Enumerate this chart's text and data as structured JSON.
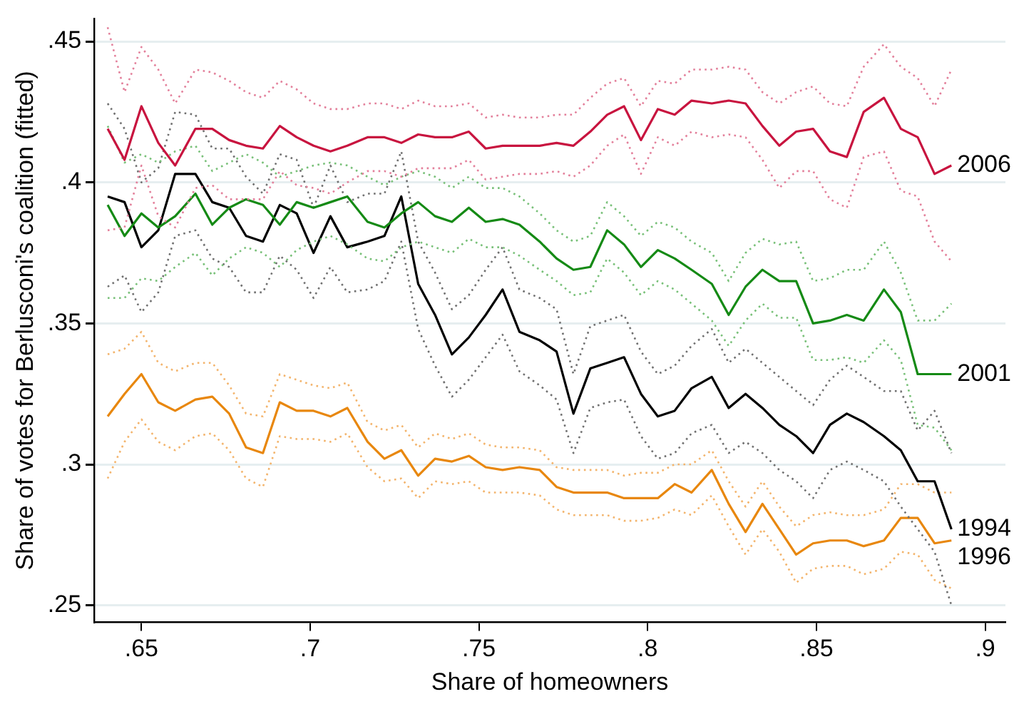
{
  "chart_data": {
    "type": "line",
    "xlabel": "Share of homeowners",
    "ylabel": "Share of votes for Berlusconi's coalition (fitted)",
    "x": [
      0.64,
      0.645,
      0.65,
      0.655,
      0.66,
      0.666,
      0.671,
      0.676,
      0.681,
      0.686,
      0.691,
      0.696,
      0.701,
      0.706,
      0.711,
      0.717,
      0.722,
      0.727,
      0.732,
      0.737,
      0.742,
      0.747,
      0.752,
      0.757,
      0.762,
      0.768,
      0.773,
      0.778,
      0.783,
      0.788,
      0.793,
      0.798,
      0.803,
      0.808,
      0.813,
      0.819,
      0.824,
      0.829,
      0.834,
      0.839,
      0.844,
      0.849,
      0.854,
      0.859,
      0.864,
      0.87,
      0.875,
      0.88,
      0.885,
      0.89
    ],
    "xlim": [
      0.636,
      0.906
    ],
    "xticks": [
      {
        "value": 0.65,
        "label": ".65"
      },
      {
        "value": 0.7,
        "label": ".7"
      },
      {
        "value": 0.75,
        "label": ".75"
      },
      {
        "value": 0.8,
        "label": ".8"
      },
      {
        "value": 0.85,
        "label": ".85"
      },
      {
        "value": 0.9,
        "label": ".9"
      }
    ],
    "ylim": [
      0.244,
      0.458
    ],
    "yticks": [
      {
        "value": 0.25,
        "label": ".25"
      },
      {
        "value": 0.3,
        "label": ".3"
      },
      {
        "value": 0.35,
        "label": ".35"
      },
      {
        "value": 0.4,
        "label": ".4"
      },
      {
        "value": 0.45,
        "label": ".45"
      }
    ],
    "grid": "y",
    "legend": false,
    "marker": "none",
    "line_style": "solid",
    "series": [
      {
        "name": "2006",
        "color": "#c8143f",
        "values": [
          0.419,
          0.408,
          0.427,
          0.414,
          0.406,
          0.419,
          0.419,
          0.415,
          0.413,
          0.412,
          0.42,
          0.416,
          0.413,
          0.411,
          0.413,
          0.416,
          0.416,
          0.414,
          0.417,
          0.416,
          0.416,
          0.418,
          0.412,
          0.413,
          0.413,
          0.413,
          0.414,
          0.413,
          0.418,
          0.424,
          0.427,
          0.415,
          0.426,
          0.424,
          0.429,
          0.428,
          0.429,
          0.428,
          0.42,
          0.413,
          0.418,
          0.419,
          0.411,
          0.409,
          0.425,
          0.43,
          0.419,
          0.416,
          0.403,
          0.406
        ]
      },
      {
        "color": "#e3809b",
        "line_style": "dotted",
        "values": [
          0.455,
          0.432,
          0.448,
          0.44,
          0.428,
          0.44,
          0.439,
          0.436,
          0.432,
          0.43,
          0.436,
          0.433,
          0.428,
          0.426,
          0.426,
          0.428,
          0.428,
          0.426,
          0.429,
          0.427,
          0.427,
          0.428,
          0.423,
          0.424,
          0.423,
          0.423,
          0.424,
          0.424,
          0.43,
          0.435,
          0.437,
          0.427,
          0.436,
          0.435,
          0.44,
          0.44,
          0.441,
          0.44,
          0.432,
          0.428,
          0.432,
          0.434,
          0.428,
          0.427,
          0.441,
          0.449,
          0.441,
          0.437,
          0.427,
          0.44
        ]
      },
      {
        "color": "#e3809b",
        "line_style": "dotted",
        "values": [
          0.383,
          0.384,
          0.406,
          0.388,
          0.384,
          0.398,
          0.399,
          0.394,
          0.394,
          0.394,
          0.404,
          0.399,
          0.398,
          0.396,
          0.4,
          0.404,
          0.404,
          0.402,
          0.405,
          0.405,
          0.405,
          0.408,
          0.401,
          0.402,
          0.403,
          0.403,
          0.404,
          0.402,
          0.406,
          0.413,
          0.417,
          0.403,
          0.416,
          0.413,
          0.418,
          0.416,
          0.417,
          0.416,
          0.408,
          0.398,
          0.404,
          0.404,
          0.394,
          0.391,
          0.409,
          0.411,
          0.397,
          0.395,
          0.379,
          0.372
        ]
      },
      {
        "name": "2001",
        "color": "#158a15",
        "values": [
          0.392,
          0.381,
          0.389,
          0.384,
          0.388,
          0.396,
          0.385,
          0.391,
          0.394,
          0.392,
          0.385,
          0.393,
          0.391,
          0.393,
          0.395,
          0.386,
          0.384,
          0.389,
          0.393,
          0.388,
          0.386,
          0.391,
          0.386,
          0.387,
          0.385,
          0.379,
          0.373,
          0.369,
          0.37,
          0.383,
          0.378,
          0.37,
          0.376,
          0.373,
          0.369,
          0.364,
          0.353,
          0.363,
          0.369,
          0.365,
          0.365,
          0.35,
          0.351,
          0.353,
          0.351,
          0.362,
          0.354,
          0.332,
          0.332,
          0.332
        ]
      },
      {
        "color": "#78c078",
        "line_style": "dotted",
        "values": [
          0.42,
          0.407,
          0.41,
          0.407,
          0.411,
          0.413,
          0.404,
          0.407,
          0.41,
          0.407,
          0.402,
          0.404,
          0.406,
          0.407,
          0.406,
          0.402,
          0.399,
          0.402,
          0.404,
          0.402,
          0.398,
          0.402,
          0.398,
          0.398,
          0.395,
          0.389,
          0.383,
          0.379,
          0.381,
          0.393,
          0.388,
          0.381,
          0.386,
          0.384,
          0.379,
          0.375,
          0.365,
          0.375,
          0.38,
          0.378,
          0.379,
          0.365,
          0.366,
          0.369,
          0.369,
          0.379,
          0.368,
          0.351,
          0.351,
          0.357
        ]
      },
      {
        "color": "#78c078",
        "line_style": "dotted",
        "values": [
          0.359,
          0.359,
          0.366,
          0.365,
          0.37,
          0.375,
          0.367,
          0.373,
          0.377,
          0.375,
          0.37,
          0.376,
          0.379,
          0.381,
          0.378,
          0.373,
          0.372,
          0.377,
          0.379,
          0.377,
          0.375,
          0.38,
          0.377,
          0.377,
          0.374,
          0.369,
          0.365,
          0.36,
          0.361,
          0.373,
          0.368,
          0.36,
          0.365,
          0.362,
          0.357,
          0.351,
          0.342,
          0.351,
          0.357,
          0.352,
          0.352,
          0.337,
          0.337,
          0.338,
          0.336,
          0.344,
          0.337,
          0.314,
          0.313,
          0.305
        ]
      },
      {
        "name": "1994",
        "color": "#000000",
        "values": [
          0.395,
          0.393,
          0.377,
          0.383,
          0.403,
          0.403,
          0.393,
          0.391,
          0.381,
          0.379,
          0.392,
          0.389,
          0.375,
          0.388,
          0.377,
          0.379,
          0.381,
          0.395,
          0.364,
          0.353,
          0.339,
          0.345,
          0.353,
          0.362,
          0.347,
          0.344,
          0.34,
          0.318,
          0.334,
          0.336,
          0.338,
          0.325,
          0.317,
          0.319,
          0.327,
          0.331,
          0.32,
          0.325,
          0.32,
          0.314,
          0.31,
          0.304,
          0.314,
          0.318,
          0.315,
          0.31,
          0.305,
          0.294,
          0.294,
          0.277
        ]
      },
      {
        "color": "#707070",
        "line_style": "dotted",
        "values": [
          0.428,
          0.419,
          0.4,
          0.405,
          0.425,
          0.424,
          0.412,
          0.412,
          0.402,
          0.396,
          0.41,
          0.408,
          0.391,
          0.406,
          0.393,
          0.396,
          0.396,
          0.411,
          0.379,
          0.368,
          0.355,
          0.36,
          0.369,
          0.377,
          0.362,
          0.359,
          0.355,
          0.332,
          0.349,
          0.351,
          0.353,
          0.34,
          0.332,
          0.335,
          0.342,
          0.348,
          0.336,
          0.341,
          0.336,
          0.331,
          0.326,
          0.321,
          0.33,
          0.335,
          0.331,
          0.326,
          0.326,
          0.312,
          0.319,
          0.304
        ]
      },
      {
        "color": "#707070",
        "line_style": "dotted",
        "values": [
          0.363,
          0.367,
          0.354,
          0.361,
          0.381,
          0.383,
          0.373,
          0.37,
          0.361,
          0.361,
          0.374,
          0.369,
          0.359,
          0.37,
          0.361,
          0.362,
          0.365,
          0.379,
          0.348,
          0.335,
          0.324,
          0.33,
          0.338,
          0.346,
          0.333,
          0.328,
          0.323,
          0.304,
          0.32,
          0.322,
          0.323,
          0.31,
          0.302,
          0.304,
          0.311,
          0.314,
          0.304,
          0.308,
          0.304,
          0.298,
          0.294,
          0.288,
          0.298,
          0.301,
          0.298,
          0.294,
          0.285,
          0.277,
          0.269,
          0.25
        ]
      },
      {
        "name": "1996",
        "color": "#e8870e",
        "values": [
          0.317,
          0.325,
          0.332,
          0.322,
          0.319,
          0.323,
          0.324,
          0.318,
          0.306,
          0.304,
          0.322,
          0.319,
          0.319,
          0.317,
          0.32,
          0.308,
          0.302,
          0.305,
          0.296,
          0.302,
          0.301,
          0.303,
          0.299,
          0.298,
          0.299,
          0.298,
          0.292,
          0.29,
          0.29,
          0.29,
          0.288,
          0.288,
          0.288,
          0.293,
          0.29,
          0.298,
          0.286,
          0.276,
          0.286,
          0.277,
          0.268,
          0.272,
          0.273,
          0.273,
          0.271,
          0.273,
          0.281,
          0.281,
          0.272,
          0.273
        ]
      },
      {
        "color": "#f3b46c",
        "line_style": "dotted",
        "values": [
          0.339,
          0.341,
          0.347,
          0.336,
          0.333,
          0.336,
          0.336,
          0.328,
          0.318,
          0.317,
          0.332,
          0.33,
          0.328,
          0.327,
          0.329,
          0.315,
          0.312,
          0.314,
          0.306,
          0.311,
          0.309,
          0.311,
          0.307,
          0.306,
          0.306,
          0.305,
          0.299,
          0.298,
          0.298,
          0.298,
          0.296,
          0.297,
          0.297,
          0.3,
          0.3,
          0.305,
          0.294,
          0.285,
          0.294,
          0.285,
          0.278,
          0.282,
          0.283,
          0.282,
          0.282,
          0.284,
          0.293,
          0.293,
          0.29,
          0.29
        ]
      },
      {
        "color": "#f3b46c",
        "line_style": "dotted",
        "values": [
          0.295,
          0.308,
          0.316,
          0.308,
          0.305,
          0.31,
          0.311,
          0.305,
          0.295,
          0.292,
          0.31,
          0.309,
          0.309,
          0.308,
          0.311,
          0.299,
          0.294,
          0.295,
          0.288,
          0.294,
          0.293,
          0.294,
          0.29,
          0.29,
          0.29,
          0.289,
          0.284,
          0.282,
          0.282,
          0.282,
          0.28,
          0.28,
          0.281,
          0.284,
          0.282,
          0.289,
          0.278,
          0.268,
          0.277,
          0.269,
          0.258,
          0.263,
          0.264,
          0.264,
          0.261,
          0.263,
          0.269,
          0.268,
          0.259,
          0.256
        ]
      }
    ]
  }
}
